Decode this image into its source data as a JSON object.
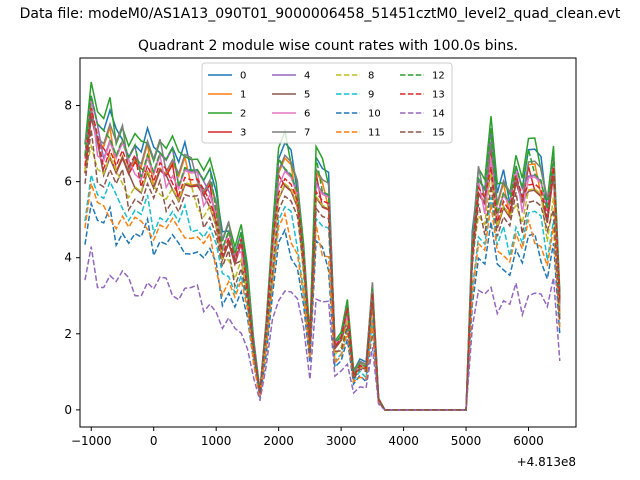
{
  "figure": {
    "suptitle": "Data file: modeM0/AS1A13_090T01_9000006458_51451cztM0_level2_quad_clean.evt",
    "title": "Quadrant 2 module wise count rates with 100.0s bins."
  },
  "chart_data": {
    "type": "line",
    "title": "Quadrant 2 module wise count rates with 100.0s bins.",
    "xlabel": "",
    "ylabel": "",
    "x_offset_label": "+4.813e8",
    "xlim": [
      -1180,
      6760
    ],
    "ylim": [
      -0.45,
      9.25
    ],
    "xticks": [
      -1000,
      0,
      1000,
      2000,
      3000,
      4000,
      5000,
      6000
    ],
    "xtick_labels": [
      "−1000",
      "0",
      "1000",
      "2000",
      "3000",
      "4000",
      "5000",
      "6000"
    ],
    "yticks": [
      0,
      2,
      4,
      6,
      8
    ],
    "ytick_labels": [
      "0",
      "2",
      "4",
      "6",
      "8"
    ],
    "grid": false,
    "legend": "upper center, 4 columns",
    "x": [
      -1100,
      -1000,
      -900,
      -800,
      -700,
      -600,
      -500,
      -400,
      -300,
      -200,
      -100,
      0,
      100,
      200,
      300,
      400,
      500,
      600,
      700,
      800,
      900,
      1000,
      1100,
      1200,
      1300,
      1400,
      1500,
      1600,
      1700,
      1800,
      1900,
      2000,
      2100,
      2200,
      2300,
      2400,
      2500,
      2600,
      2700,
      2800,
      2900,
      3000,
      3100,
      3200,
      3300,
      3400,
      3500,
      3600,
      3700,
      3800,
      3900,
      4000,
      4100,
      4200,
      4300,
      4400,
      4500,
      4600,
      4700,
      4800,
      4900,
      5000,
      5100,
      5200,
      5300,
      5400,
      5500,
      5600,
      5700,
      5800,
      5900,
      6000,
      6100,
      6200,
      6300,
      6400,
      6500
    ],
    "base": [
      7.0,
      8.5,
      7.6,
      7.3,
      7.7,
      7.1,
      7.4,
      6.8,
      7.0,
      6.7,
      7.2,
      6.6,
      7.0,
      6.7,
      6.9,
      6.4,
      6.8,
      6.6,
      6.5,
      6.1,
      6.3,
      5.6,
      4.5,
      4.9,
      4.2,
      4.7,
      3.6,
      1.8,
      0.5,
      2.3,
      4.6,
      6.6,
      6.9,
      6.6,
      6.0,
      4.3,
      1.9,
      6.6,
      6.2,
      6.0,
      1.8,
      2.0,
      2.8,
      1.0,
      1.3,
      1.2,
      3.3,
      0.3,
      0.0,
      0.0,
      0.0,
      0.0,
      0.0,
      0.0,
      0.0,
      0.0,
      0.0,
      0.0,
      0.0,
      0.0,
      0.0,
      0.0,
      4.5,
      6.3,
      5.9,
      7.4,
      5.6,
      6.1,
      5.7,
      6.6,
      5.9,
      6.8,
      6.7,
      6.4,
      5.5,
      6.8,
      3.0
    ],
    "series": [
      {
        "name": "0",
        "color": "#1f77b4",
        "dash": "solid",
        "scale": 1.0
      },
      {
        "name": "1",
        "color": "#ff7f0e",
        "dash": "solid",
        "scale": 0.93
      },
      {
        "name": "2",
        "color": "#2ca02c",
        "dash": "solid",
        "scale": 1.02
      },
      {
        "name": "3",
        "color": "#d62728",
        "dash": "solid",
        "scale": 0.9
      },
      {
        "name": "4",
        "color": "#9467bd",
        "dash": "solid",
        "scale": 0.95
      },
      {
        "name": "5",
        "color": "#8c564b",
        "dash": "solid",
        "scale": 0.88
      },
      {
        "name": "6",
        "color": "#e377c2",
        "dash": "solid",
        "scale": 0.92
      },
      {
        "name": "7",
        "color": "#7f7f7f",
        "dash": "solid",
        "scale": 0.97
      },
      {
        "name": "8",
        "color": "#bcbd22",
        "dash": "dashed",
        "scale": 0.85
      },
      {
        "name": "9",
        "color": "#17becf",
        "dash": "dashed",
        "scale": 0.75
      },
      {
        "name": "10",
        "color": "#1f77b4",
        "dash": "dashed",
        "scale": 0.65
      },
      {
        "name": "11",
        "color": "#ff7f0e",
        "dash": "dashed",
        "scale": 0.7
      },
      {
        "name": "12",
        "color": "#2ca02c",
        "dash": "dashed",
        "scale": 0.96
      },
      {
        "name": "13",
        "color": "#d62728",
        "dash": "dashed",
        "scale": 0.91
      },
      {
        "name": "14",
        "color": "#9467bd",
        "dash": "dashed",
        "scale": 0.47
      },
      {
        "name": "15",
        "color": "#8c564b",
        "dash": "dashed",
        "scale": 0.82
      }
    ]
  }
}
